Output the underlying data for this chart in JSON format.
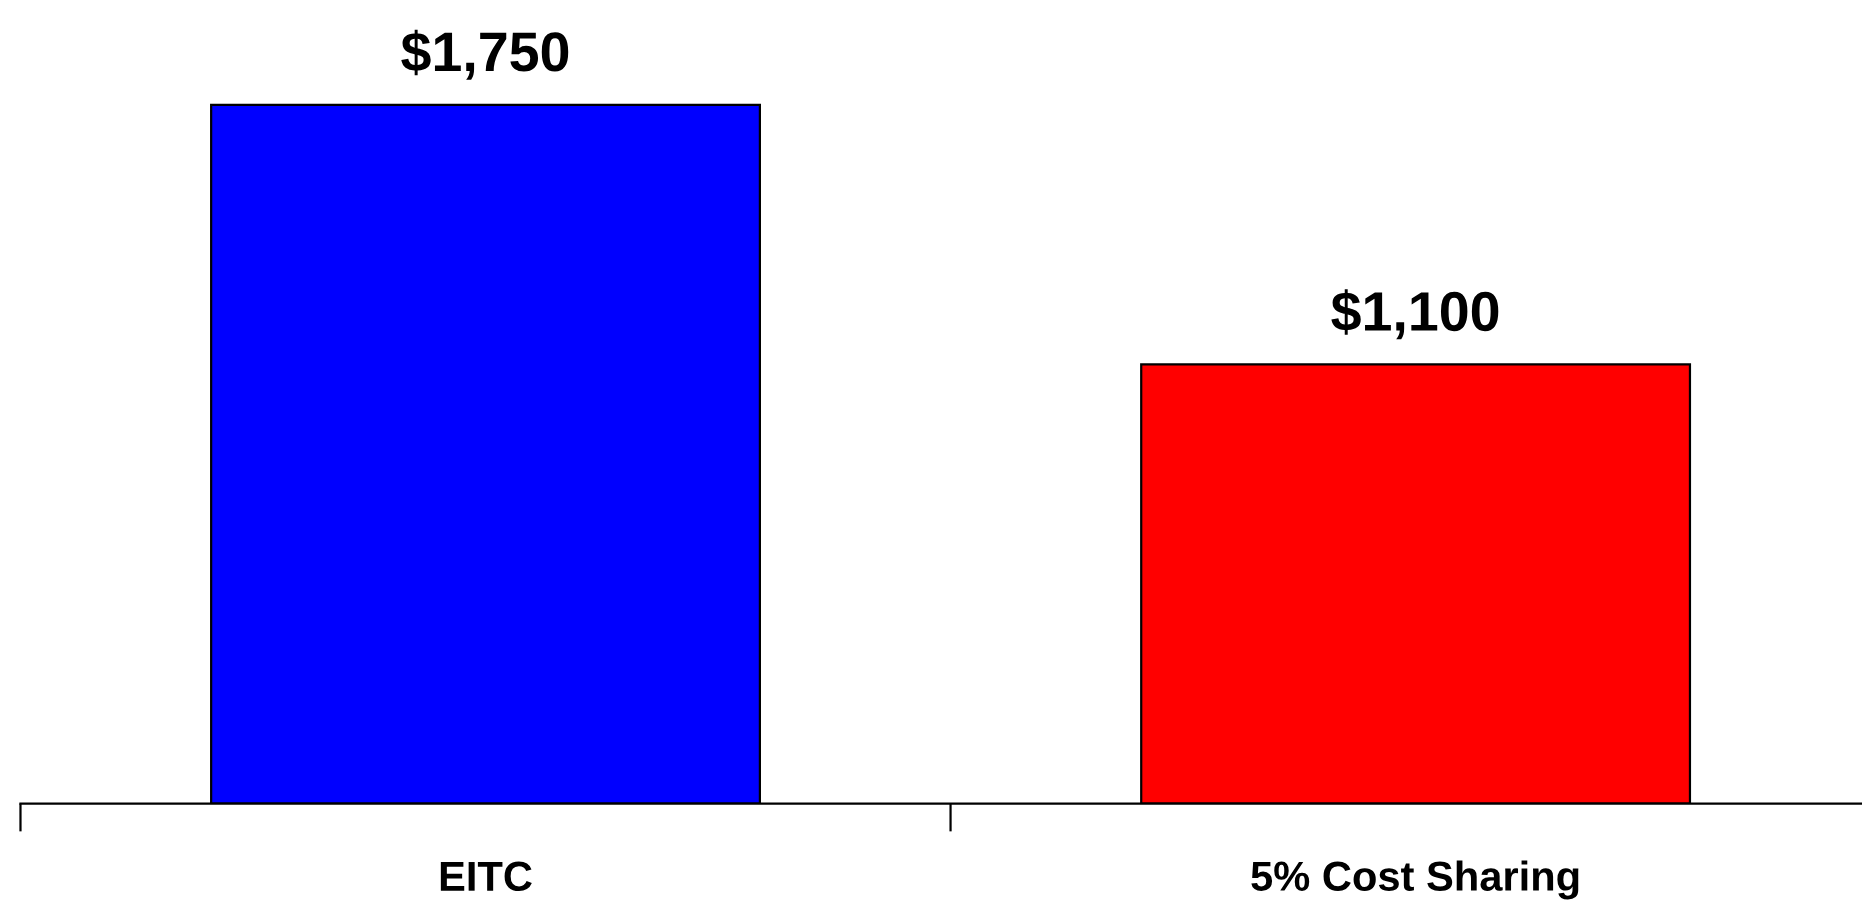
{
  "chart_data": {
    "type": "bar",
    "categories": [
      "EITC",
      "5% Cost Sharing"
    ],
    "values": [
      1750,
      1100
    ],
    "colors": [
      "#0000ff",
      "#ff0000"
    ],
    "value_labels": [
      "$1,750",
      "$1,100"
    ]
  }
}
